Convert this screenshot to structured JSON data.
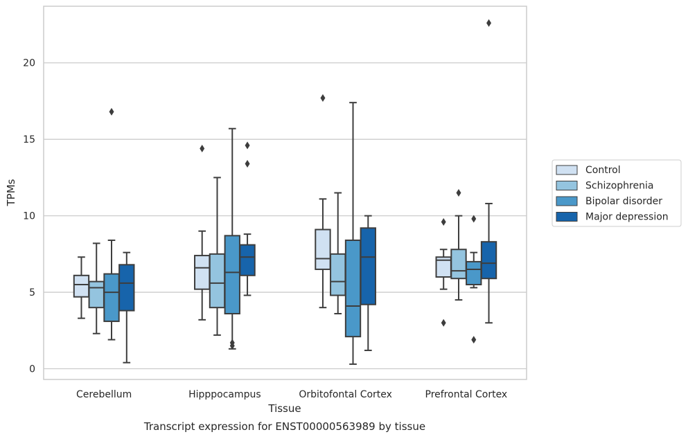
{
  "chart_data": {
    "type": "boxplot",
    "title": "",
    "caption": "Transcript expression for ENST00000563989 by tissue",
    "xlabel": "Tissue",
    "ylabel": "TPMs",
    "ylim": [
      -0.7,
      23.7
    ],
    "yticks": [
      0,
      5,
      10,
      15,
      20
    ],
    "grid": true,
    "legend_position": "right",
    "categories": [
      "Cerebellum",
      "Hipppocampus",
      "Orbitofontal Cortex",
      "Prefrontal Cortex"
    ],
    "series": [
      {
        "name": "Control",
        "color": "#d0e1f2",
        "boxes": [
          {
            "whislo": 3.3,
            "q1": 4.7,
            "med": 5.5,
            "q3": 6.1,
            "whishi": 7.3,
            "fliers": []
          },
          {
            "whislo": 3.2,
            "q1": 5.2,
            "med": 6.6,
            "q3": 7.4,
            "whishi": 9.0,
            "fliers": [
              14.4
            ]
          },
          {
            "whislo": 4.0,
            "q1": 6.5,
            "med": 7.2,
            "q3": 9.1,
            "whishi": 11.1,
            "fliers": [
              17.7
            ]
          },
          {
            "whislo": 5.2,
            "q1": 6.0,
            "med": 7.1,
            "q3": 7.3,
            "whishi": 7.8,
            "fliers": [
              9.6,
              3.0
            ]
          }
        ]
      },
      {
        "name": "Schizophrenia",
        "color": "#94c4df",
        "boxes": [
          {
            "whislo": 2.3,
            "q1": 4.0,
            "med": 5.3,
            "q3": 5.7,
            "whishi": 8.2,
            "fliers": []
          },
          {
            "whislo": 2.2,
            "q1": 4.0,
            "med": 5.6,
            "q3": 7.5,
            "whishi": 12.5,
            "fliers": []
          },
          {
            "whislo": 3.6,
            "q1": 4.8,
            "med": 5.7,
            "q3": 7.5,
            "whishi": 11.5,
            "fliers": []
          },
          {
            "whislo": 4.5,
            "q1": 5.9,
            "med": 6.4,
            "q3": 7.8,
            "whishi": 10.0,
            "fliers": [
              11.5
            ]
          }
        ]
      },
      {
        "name": "Bipolar disorder",
        "color": "#4a98c9",
        "boxes": [
          {
            "whislo": 1.9,
            "q1": 3.1,
            "med": 5.0,
            "q3": 6.2,
            "whishi": 8.4,
            "fliers": [
              16.8
            ]
          },
          {
            "whislo": 1.3,
            "q1": 3.6,
            "med": 6.3,
            "q3": 8.7,
            "whishi": 15.7,
            "fliers": [
              1.7,
              1.5
            ]
          },
          {
            "whislo": 0.3,
            "q1": 2.1,
            "med": 4.1,
            "q3": 8.4,
            "whishi": 17.4,
            "fliers": []
          },
          {
            "whislo": 5.3,
            "q1": 5.5,
            "med": 6.5,
            "q3": 7.0,
            "whishi": 7.6,
            "fliers": [
              9.8,
              1.9
            ]
          }
        ]
      },
      {
        "name": "Major depression",
        "color": "#1764ab",
        "boxes": [
          {
            "whislo": 0.4,
            "q1": 3.8,
            "med": 5.6,
            "q3": 6.8,
            "whishi": 7.6,
            "fliers": []
          },
          {
            "whislo": 4.8,
            "q1": 6.1,
            "med": 7.3,
            "q3": 8.1,
            "whishi": 8.8,
            "fliers": [
              14.6,
              13.4
            ]
          },
          {
            "whislo": 1.2,
            "q1": 4.2,
            "med": 7.3,
            "q3": 9.2,
            "whishi": 10.0,
            "fliers": []
          },
          {
            "whislo": 3.0,
            "q1": 5.9,
            "med": 6.9,
            "q3": 8.3,
            "whishi": 10.8,
            "fliers": [
              22.6
            ]
          }
        ]
      }
    ]
  }
}
